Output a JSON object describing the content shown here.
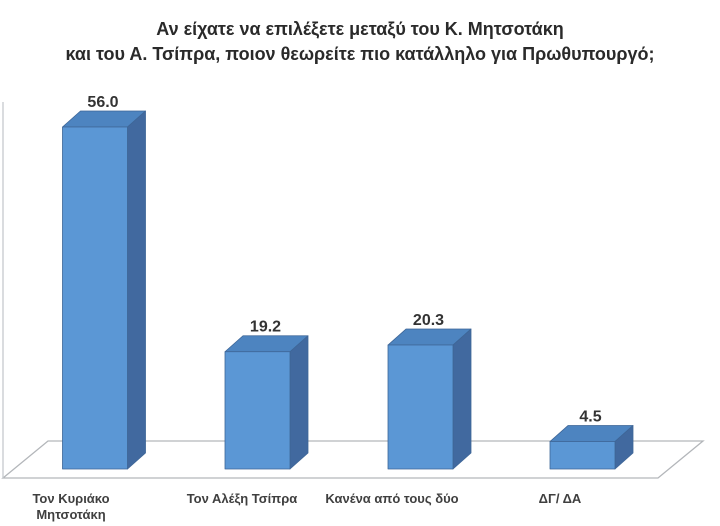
{
  "colors": {
    "bar_front": "#5b97d5",
    "bar_top": "#4d84c0",
    "bar_side": "#41699f",
    "bar_edge": "#3e6697",
    "floor_line": "#b3b6ba",
    "axis_line": "#c5c9ce",
    "title_text": "#2a2a2a",
    "value_text": "#333333",
    "category_text": "#3f3f3f",
    "background": "#ffffff"
  },
  "chart_data": {
    "type": "bar",
    "style": "3d-column",
    "title": "Αν είχατε να επιλέξετε μεταξύ του Κ. Μητσοτάκη και του Α. Τσίπρα, ποιον θεωρείτε πιο κατάλληλο για Πρωθυπουργό;",
    "title_lines": [
      "Αν είχατε να επιλέξετε μεταξύ του Κ. Μητσοτάκη",
      "και του Α. Τσίπρα, ποιον θεωρείτε πιο κατάλληλο για Πρωθυπουργό;"
    ],
    "categories": [
      "Τον Κυριάκο Μητσοτάκη",
      "Τον Αλέξη Τσίπρα",
      "Κανένα από τους δύο",
      "ΔΓ/ ΔΑ"
    ],
    "category_label_lines": [
      [
        "Τον Κυριάκο",
        "Μητσοτάκη"
      ],
      [
        "Τον Αλέξη Τσίπρα"
      ],
      [
        "Κανένα από τους δύο"
      ],
      [
        "ΔΓ/ ΔΑ"
      ]
    ],
    "values": [
      56.0,
      19.2,
      20.3,
      4.5
    ],
    "value_labels": [
      "56.0",
      "19.2",
      "20.3",
      "4.5"
    ],
    "ylim": [
      0,
      60
    ],
    "grid": false,
    "legend": false,
    "xlabel": "",
    "ylabel": ""
  }
}
